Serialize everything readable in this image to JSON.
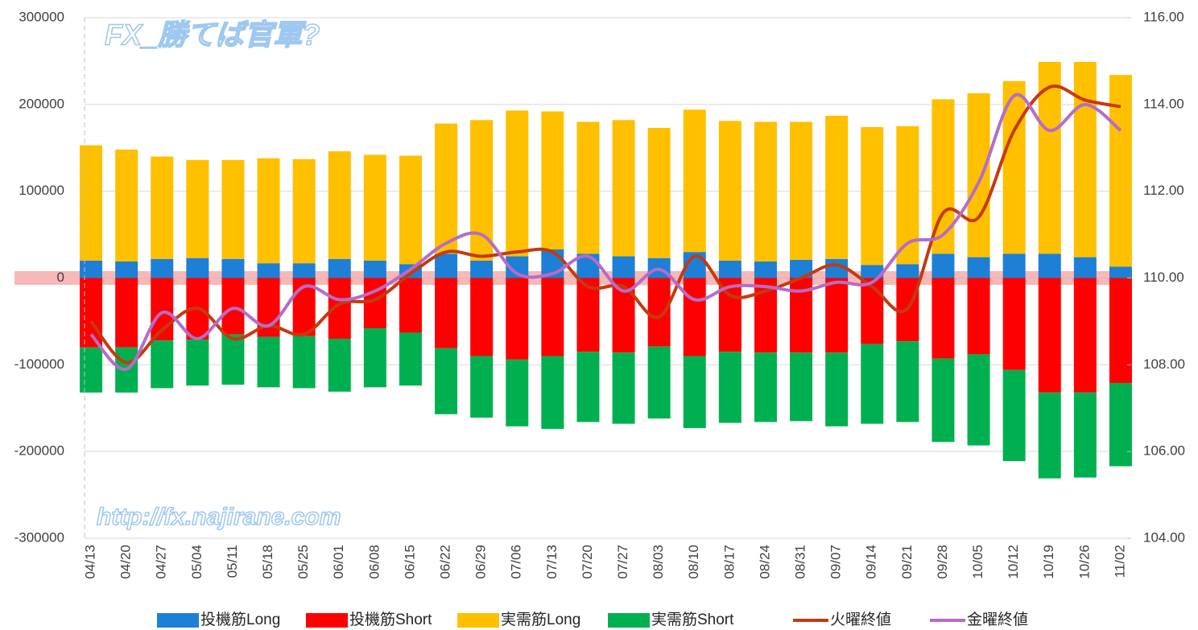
{
  "chart_data": {
    "type": "bar",
    "annotations": [
      "FX_勝てば官軍?",
      "http://fx.najirane.com"
    ],
    "categories": [
      "04/13",
      "04/20",
      "04/27",
      "05/04",
      "05/11",
      "05/18",
      "05/25",
      "06/01",
      "06/08",
      "06/15",
      "06/22",
      "06/29",
      "07/06",
      "07/13",
      "07/20",
      "07/27",
      "08/03",
      "08/10",
      "08/17",
      "08/24",
      "08/31",
      "09/07",
      "09/14",
      "09/21",
      "09/28",
      "10/05",
      "10/12",
      "10/19",
      "10/26",
      "11/02"
    ],
    "series": [
      {
        "name": "投機筋Long",
        "type": "bar",
        "color": "#1e7fd6",
        "values": [
          20000,
          19000,
          22000,
          23000,
          22000,
          17000,
          17000,
          22000,
          20000,
          16000,
          28000,
          20000,
          25000,
          33000,
          28000,
          25000,
          23000,
          30000,
          20000,
          19000,
          21000,
          22000,
          15000,
          16000,
          28000,
          24000,
          28000,
          28000,
          24000,
          13000
        ]
      },
      {
        "name": "投機筋Short",
        "type": "bar",
        "color": "#ff0000",
        "values": [
          -80000,
          -80000,
          -72000,
          -71000,
          -65000,
          -68000,
          -67000,
          -70000,
          -58000,
          -63000,
          -81000,
          -90000,
          -94000,
          -90000,
          -85000,
          -86000,
          -79000,
          -90000,
          -85000,
          -86000,
          -86000,
          -86000,
          -76000,
          -73000,
          -93000,
          -88000,
          -106000,
          -132000,
          -132000,
          -121000
        ]
      },
      {
        "name": "実需筋Long",
        "type": "bar",
        "color": "#ffc000",
        "values": [
          133000,
          129000,
          118000,
          113000,
          114000,
          121000,
          120000,
          124000,
          122000,
          125000,
          150000,
          162000,
          168000,
          159000,
          152000,
          157000,
          150000,
          164000,
          161000,
          161000,
          159000,
          165000,
          159000,
          159000,
          178000,
          189000,
          199000,
          221000,
          225000,
          221000
        ]
      },
      {
        "name": "実需筋Short",
        "type": "bar",
        "color": "#00b050",
        "values": [
          -52000,
          -52000,
          -55000,
          -53000,
          -58000,
          -58000,
          -60000,
          -61000,
          -68000,
          -61000,
          -76000,
          -71000,
          -77000,
          -84000,
          -81000,
          -82000,
          -83000,
          -83000,
          -82000,
          -80000,
          -79000,
          -85000,
          -92000,
          -93000,
          -96000,
          -105000,
          -105000,
          -99000,
          -98000,
          -96000
        ]
      },
      {
        "name": "火曜終値",
        "type": "line",
        "axis": "y2",
        "color": "#c53a0f",
        "values": [
          109.0,
          108.05,
          108.8,
          109.3,
          108.6,
          108.9,
          108.7,
          109.4,
          109.5,
          110.1,
          110.6,
          110.5,
          110.6,
          110.6,
          109.8,
          109.8,
          109.1,
          110.5,
          109.6,
          109.7,
          110.0,
          110.3,
          109.8,
          109.3,
          111.5,
          111.4,
          113.4,
          114.4,
          114.1,
          113.95
        ]
      },
      {
        "name": "金曜終値",
        "type": "line",
        "axis": "y2",
        "color": "#b66cc8",
        "values": [
          108.7,
          107.9,
          109.2,
          108.6,
          109.3,
          108.9,
          109.8,
          109.5,
          109.7,
          110.2,
          110.8,
          111.0,
          110.1,
          110.1,
          110.5,
          109.7,
          110.2,
          109.5,
          109.8,
          109.8,
          109.7,
          109.9,
          109.9,
          110.8,
          111.0,
          112.2,
          114.2,
          113.4,
          114.0,
          113.4
        ]
      }
    ],
    "ylim": [
      -300000,
      300000
    ],
    "yticks": [
      -300000,
      -200000,
      -100000,
      0,
      100000,
      200000,
      300000
    ],
    "y2lim": [
      104,
      116
    ],
    "y2ticks": [
      {
        "value": 104,
        "label": "104.00"
      },
      {
        "value": 106,
        "label": "106.00"
      },
      {
        "value": 108,
        "label": "108.00"
      },
      {
        "value": 110,
        "label": "110.00"
      },
      {
        "value": 112,
        "label": "112.00"
      },
      {
        "value": 114,
        "label": "114.00"
      },
      {
        "value": 116,
        "label": "116.00"
      }
    ],
    "grid": true
  }
}
